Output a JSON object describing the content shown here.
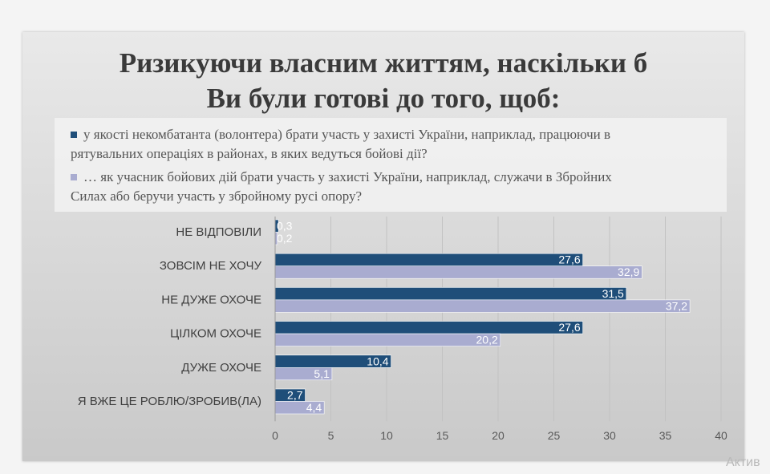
{
  "chart_data": {
    "type": "bar",
    "orientation": "horizontal",
    "title": "Ризикуючи власним життям, наскільки б Ви були готові до того, щоб:",
    "title_lines": [
      "Ризикуючи власним життям, наскільки б",
      "Ви були готові до того, щоб:"
    ],
    "categories": [
      "НЕ ВІДПОВІЛИ",
      "ЗОВСІМ НЕ ХОЧУ",
      "НЕ ДУЖЕ ОХОЧЕ",
      "ЦІЛКОМ ОХОЧЕ",
      "ДУЖЕ ОХОЧЕ",
      "Я ВЖЕ ЦЕ РОБЛЮ/ЗРОБИВ(ЛА)"
    ],
    "series": [
      {
        "name": "у якості некомбатанта (волонтера) брати участь у захисті України, наприклад, працюючи в рятувальних операціях в районах, в яких ведуться бойові дії?",
        "legend_lines": [
          "у якості некомбатанта (волонтера) брати участь у захисті України, наприклад, працюючи в",
          "рятувальних операціях в районах, в яких ведуться бойові дії?"
        ],
        "color": "#1f4e79",
        "values": [
          0.3,
          27.6,
          31.5,
          27.6,
          10.4,
          2.7
        ],
        "labels": [
          "0,3",
          "27,6",
          "31,5",
          "27,6",
          "10,4",
          "2,7"
        ]
      },
      {
        "name": "… як учасник бойових дій брати участь у захисті України, наприклад, служачи в Збройних Силах або беручи участь у збройному русі опору?",
        "legend_lines": [
          "… як учасник бойових дій брати участь у захисті України, наприклад, служачи в Збройних",
          "Силах або беручи участь у збройному русі опору?"
        ],
        "color": "#a9acd0",
        "values": [
          0.2,
          32.9,
          37.2,
          20.2,
          5.1,
          4.4
        ],
        "labels": [
          "0,2",
          "32,9",
          "37,2",
          "20,2",
          "5,1",
          "4,4"
        ]
      }
    ],
    "xlim": [
      0,
      40
    ],
    "xticks": [
      0,
      5,
      10,
      15,
      20,
      25,
      30,
      35,
      40
    ],
    "grid": true,
    "legend_position": "top"
  },
  "watermark": "Актив"
}
